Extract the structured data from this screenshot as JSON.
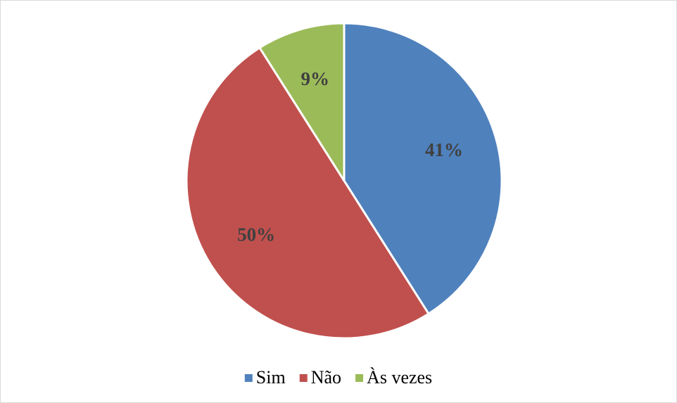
{
  "chart_data": {
    "type": "pie",
    "categories": [
      "Sim",
      "Não",
      "Às vezes"
    ],
    "values": [
      41,
      50,
      9
    ],
    "value_labels": [
      "41%",
      "50%",
      "9%"
    ],
    "colors": [
      "#4f81bd",
      "#c0504d",
      "#9bbb59"
    ],
    "legend": "bottom"
  }
}
